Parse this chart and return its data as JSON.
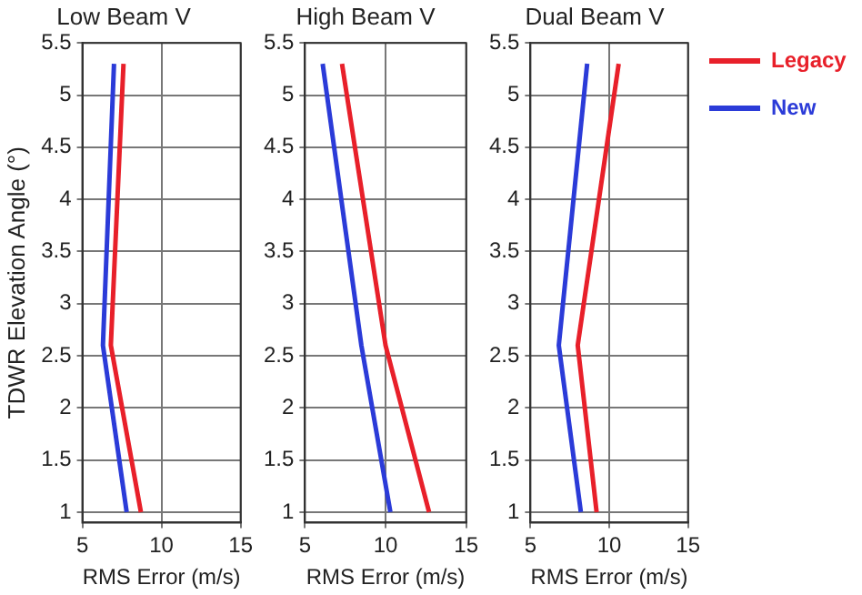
{
  "chart_data": [
    {
      "type": "line",
      "title": "Low Beam V",
      "xlabel": "RMS Error (m/s)",
      "ylabel": "TDWR Elevation Angle (°)",
      "xlim": [
        5,
        15
      ],
      "xticks": [
        5,
        10,
        15
      ],
      "ylim": [
        0.9,
        5.5
      ],
      "yticks": [
        1,
        1.5,
        2,
        2.5,
        3,
        3.5,
        4,
        4.5,
        5,
        5.5
      ],
      "grid": true,
      "legend": false,
      "series": [
        {
          "color": "#e8202a",
          "x": [
            8.7,
            6.8,
            7.6
          ],
          "values": [
            1,
            2.6,
            5.3
          ]
        },
        {
          "color": "#2b3bd8",
          "x": [
            7.8,
            6.3,
            7.0
          ],
          "values": [
            1,
            2.6,
            5.3
          ]
        }
      ]
    },
    {
      "type": "line",
      "title": "High Beam V",
      "xlabel": "RMS Error (m/s)",
      "xlim": [
        5,
        15
      ],
      "xticks": [
        5,
        10,
        15
      ],
      "ylim": [
        0.9,
        5.5
      ],
      "yticks": [
        1,
        1.5,
        2,
        2.5,
        3,
        3.5,
        4,
        4.5,
        5,
        5.5
      ],
      "grid": true,
      "legend": false,
      "series": [
        {
          "color": "#e8202a",
          "x": [
            12.7,
            10.0,
            7.3
          ],
          "values": [
            1,
            2.6,
            5.3
          ]
        },
        {
          "color": "#2b3bd8",
          "x": [
            10.3,
            8.5,
            6.1
          ],
          "values": [
            1,
            2.6,
            5.3
          ]
        }
      ]
    },
    {
      "type": "line",
      "title": "Dual Beam V",
      "xlabel": "RMS Error (m/s)",
      "xlim": [
        5,
        15
      ],
      "xticks": [
        5,
        10,
        15
      ],
      "ylim": [
        0.9,
        5.5
      ],
      "yticks": [
        1,
        1.5,
        2,
        2.5,
        3,
        3.5,
        4,
        4.5,
        5,
        5.5
      ],
      "grid": true,
      "legend": "right",
      "series": [
        {
          "name": "Legacy",
          "color": "#e8202a",
          "x": [
            9.2,
            8.0,
            10.6
          ],
          "values": [
            1,
            2.6,
            5.3
          ]
        },
        {
          "name": "New",
          "color": "#2b3bd8",
          "x": [
            8.2,
            6.8,
            8.6
          ],
          "values": [
            1,
            2.6,
            5.3
          ]
        }
      ]
    }
  ]
}
